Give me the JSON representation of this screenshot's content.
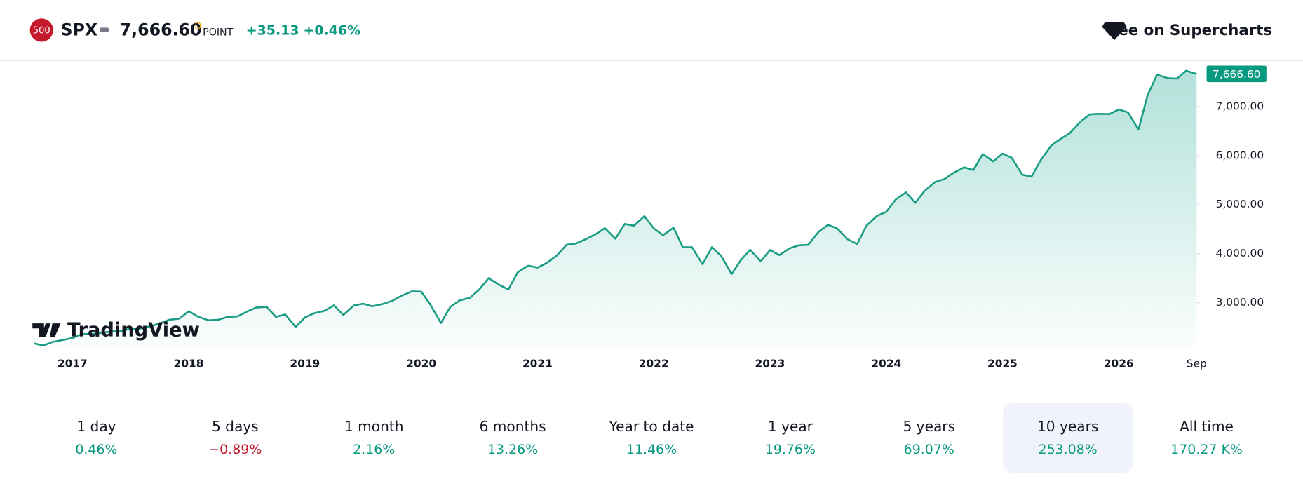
{
  "header": {
    "badge": "500",
    "symbol": "SPX",
    "price": "7,666.60",
    "period": "D",
    "unit": "POINT",
    "change": "+35.13",
    "change_percent": "+0.46%",
    "link": "See on Supercharts"
  },
  "logo": "TradingView",
  "chart_data": {
    "type": "area",
    "color": "#1a9c85",
    "last_label": "7,666.60",
    "last_label_color": "#089981",
    "x": [
      2016.67,
      2016.75,
      2016.83,
      2016.92,
      2017,
      2017.08,
      2017.17,
      2017.25,
      2017.33,
      2017.42,
      2017.5,
      2017.58,
      2017.67,
      2017.75,
      2017.83,
      2017.92,
      2018,
      2018.08,
      2018.17,
      2018.25,
      2018.33,
      2018.42,
      2018.5,
      2018.58,
      2018.67,
      2018.75,
      2018.83,
      2018.92,
      2019,
      2019.08,
      2019.17,
      2019.25,
      2019.33,
      2019.42,
      2019.5,
      2019.58,
      2019.67,
      2019.75,
      2019.83,
      2019.92,
      2020,
      2020.08,
      2020.17,
      2020.25,
      2020.33,
      2020.42,
      2020.5,
      2020.58,
      2020.67,
      2020.75,
      2020.83,
      2020.92,
      2021,
      2021.08,
      2021.17,
      2021.25,
      2021.33,
      2021.42,
      2021.5,
      2021.58,
      2021.67,
      2021.75,
      2021.83,
      2021.92,
      2022,
      2022.08,
      2022.17,
      2022.25,
      2022.33,
      2022.42,
      2022.5,
      2022.58,
      2022.67,
      2022.75,
      2022.83,
      2022.92,
      2023,
      2023.08,
      2023.17,
      2023.25,
      2023.33,
      2023.42,
      2023.5,
      2023.58,
      2023.67,
      2023.75,
      2023.83,
      2023.92,
      2024,
      2024.08,
      2024.17,
      2024.25,
      2024.33,
      2024.42,
      2024.5,
      2024.58,
      2024.67,
      2024.75,
      2024.83,
      2024.92,
      2025,
      2025.08,
      2025.17,
      2025.25,
      2025.33,
      2025.42,
      2025.5,
      2025.58,
      2025.67,
      2025.75,
      2025.83,
      2025.92,
      2026,
      2026.08,
      2026.17,
      2026.25,
      2026.33,
      2026.42,
      2026.5,
      2026.58,
      2026.67
    ],
    "values": [
      2170,
      2125,
      2200,
      2240,
      2280,
      2360,
      2360,
      2385,
      2410,
      2420,
      2470,
      2470,
      2520,
      2575,
      2650,
      2675,
      2825,
      2715,
      2640,
      2650,
      2705,
      2720,
      2815,
      2900,
      2915,
      2710,
      2760,
      2505,
      2700,
      2785,
      2835,
      2945,
      2750,
      2940,
      2980,
      2925,
      2975,
      3035,
      3140,
      3230,
      3225,
      2955,
      2585,
      2910,
      3045,
      3100,
      3270,
      3500,
      3365,
      3270,
      3620,
      3755,
      3715,
      3810,
      3970,
      4180,
      4205,
      4300,
      4395,
      4520,
      4305,
      4605,
      4570,
      4765,
      4515,
      4375,
      4530,
      4130,
      4130,
      3785,
      4130,
      3955,
      3585,
      3870,
      4080,
      3840,
      4075,
      3970,
      4110,
      4170,
      4180,
      4450,
      4590,
      4510,
      4290,
      4195,
      4570,
      4770,
      4850,
      5100,
      5250,
      5035,
      5280,
      5460,
      5520,
      5650,
      5760,
      5705,
      6030,
      5880,
      6040,
      5955,
      5610,
      5570,
      5910,
      6205,
      6340,
      6460,
      6690,
      6840,
      6850,
      6845,
      6940,
      6880,
      6530,
      7240,
      7650,
      7580,
      7570,
      7730,
      7666.6
    ],
    "xlim": [
      2016.67,
      2026.67
    ],
    "ylim": [
      2100,
      7900
    ],
    "xticks": [
      2017,
      2018,
      2019,
      2020,
      2021,
      2022,
      2023,
      2024,
      2025,
      2026,
      {
        "value": 2026.67,
        "label": "Sep"
      }
    ],
    "yticks": [
      {
        "value": 3000,
        "label": "3,000.00"
      },
      {
        "value": 4000,
        "label": "4,000.00"
      },
      {
        "value": 5000,
        "label": "5,000.00"
      },
      {
        "value": 6000,
        "label": "6,000.00"
      },
      {
        "value": 7000,
        "label": "7,000.00"
      }
    ]
  },
  "periods": [
    {
      "label": "1 day",
      "change": "0.46%",
      "color": "#089981"
    },
    {
      "label": "5 days",
      "change": "−0.89%",
      "color": "#c5192d"
    },
    {
      "label": "1 month",
      "change": "2.16%",
      "color": "#089981"
    },
    {
      "label": "6 months",
      "change": "13.26%",
      "color": "#089981"
    },
    {
      "label": "Year to date",
      "change": "11.46%",
      "color": "#089981"
    },
    {
      "label": "1 year",
      "change": "19.76%",
      "color": "#089981"
    },
    {
      "label": "5 years",
      "change": "69.07%",
      "color": "#089981"
    },
    {
      "label": "10 years",
      "change": "253.08%",
      "color": "#089981",
      "selected": true
    },
    {
      "label": "All time",
      "change": "170.27 K%",
      "color": "#089981"
    }
  ]
}
